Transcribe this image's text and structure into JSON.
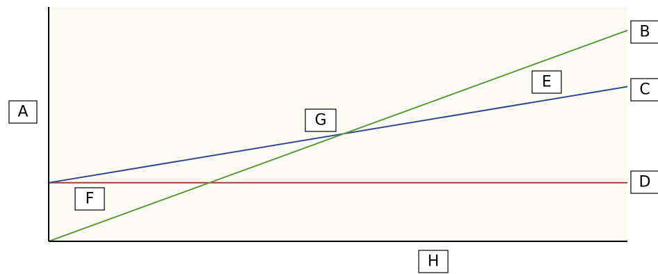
{
  "colors": {
    "background": "#fbfaf4",
    "axis": "#000000",
    "line_b": "#5a9a3c",
    "line_c": "#2f4a8c",
    "line_d": "#a83a32"
  },
  "labels": {
    "a": "A",
    "b": "B",
    "c": "C",
    "d": "D",
    "e": "E",
    "f": "F",
    "g": "G",
    "h": "H"
  },
  "chart_data": {
    "type": "line",
    "x_range": [
      0,
      1
    ],
    "y_range": [
      0,
      1
    ],
    "series": [
      {
        "label": "B",
        "color": "#5a9a3c",
        "points": [
          [
            0,
            0
          ],
          [
            1,
            0.9
          ]
        ]
      },
      {
        "label": "C",
        "color": "#2f4a8c",
        "points": [
          [
            0,
            0.25
          ],
          [
            1,
            0.66
          ]
        ]
      },
      {
        "label": "D",
        "color": "#a83a32",
        "points": [
          [
            0,
            0.25
          ],
          [
            1,
            0.25
          ]
        ]
      }
    ]
  }
}
